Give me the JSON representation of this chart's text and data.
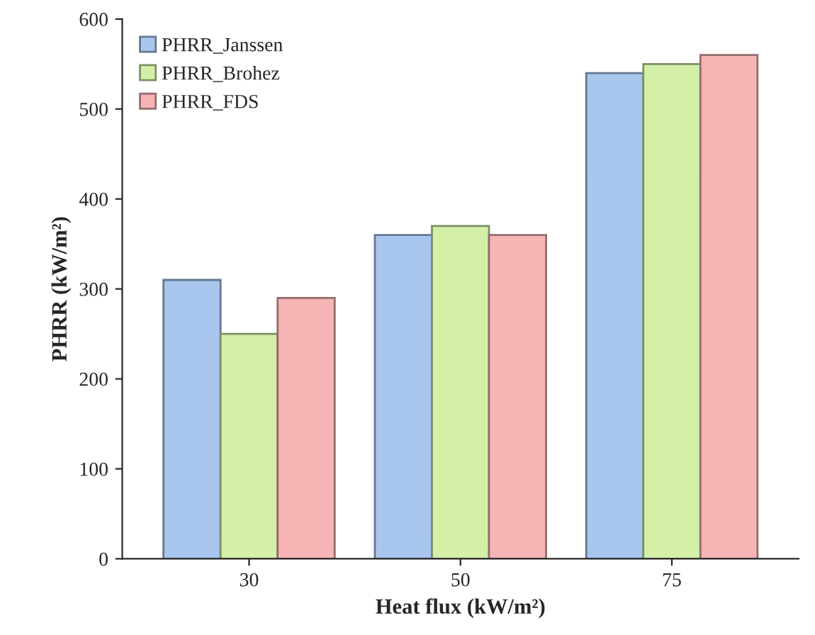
{
  "chart_data": {
    "type": "bar",
    "xlabel": "Heat flux (kW/m²)",
    "ylabel": "PHRR (kW/m²)",
    "categories": [
      "30",
      "50",
      "75"
    ],
    "series": [
      {
        "name": "PHRR_Janssen",
        "color": "#a9c6ee",
        "values": [
          310,
          360,
          540
        ]
      },
      {
        "name": "PHRR_Brohez",
        "color": "#d4f0a8",
        "values": [
          250,
          370,
          550
        ]
      },
      {
        "name": "PHRR_FDS",
        "color": "#f7b4b4",
        "values": [
          290,
          360,
          560
        ]
      }
    ],
    "ylim": [
      0,
      600
    ],
    "yticks": [
      0,
      100,
      200,
      300,
      400,
      500,
      600
    ],
    "grid": false,
    "legend": "top left"
  }
}
